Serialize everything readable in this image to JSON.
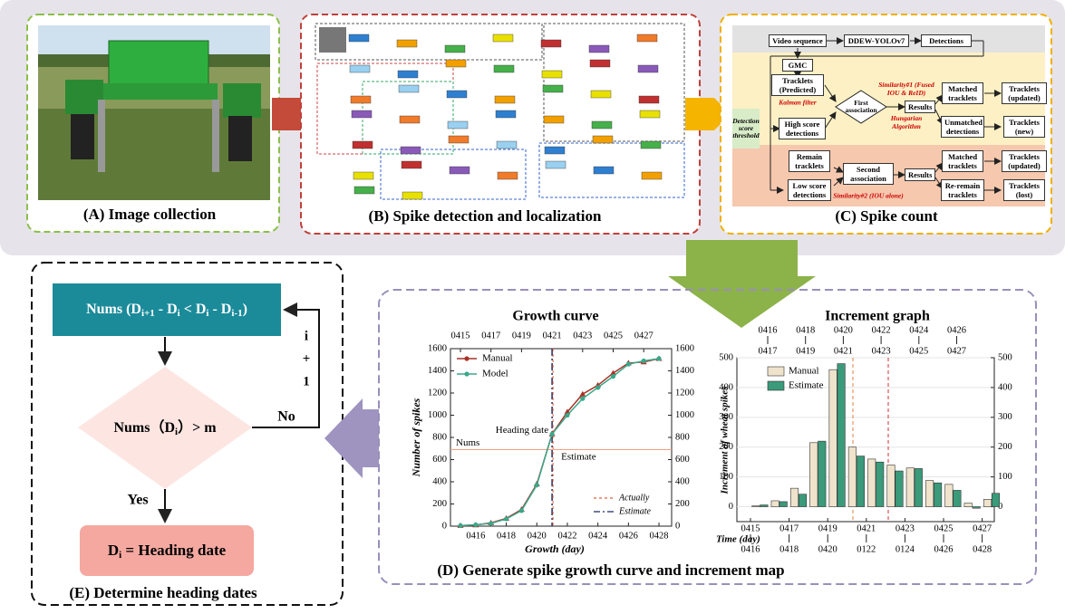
{
  "panel_a": {
    "caption": "(A) Image collection"
  },
  "panel_b": {
    "caption": "(B) Spike detection and localization"
  },
  "panel_c": {
    "caption": "(C)   Spike count",
    "nodes": {
      "video_sequence": "Video sequence",
      "detector": "DDEW-YOLOv7",
      "detections": "Detections",
      "gmc": "GMC",
      "tracklets_predicted": "Tracklets (Predicted)",
      "kalman": "Kalman filter",
      "threshold": "Detection score threshold",
      "high_score": "High score detections",
      "first_association": "First association",
      "similarity_1": "Similarity#1 (Fused IOU & ReID)",
      "hungarian": "Hungarian Algorithm",
      "results_1": "Results",
      "matched_1": "Matched tracklets",
      "updated_1": "Tracklets (updated)",
      "unmatched": "Unmatched detections",
      "new": "Tracklets (new)",
      "remain": "Remain tracklets",
      "second_association": "Second association",
      "low_score": "Low score detections",
      "similarity_2": "Similarity#2 (IOU alone)",
      "results_2": "Results",
      "matched_2": "Matched tracklets",
      "updated_2": "Tracklets (updated)",
      "re_remain": "Re-remain tracklets",
      "lost": "Tracklets (lost)"
    }
  },
  "panel_d": {
    "caption": "(D) Generate spike growth curve and increment map",
    "growth_curve": {
      "type": "line",
      "title": "Growth curve",
      "x_label": "Growth (day)",
      "y_label": "Number of spikes",
      "categories": [
        "0415",
        "0416",
        "0417",
        "0418",
        "0419",
        "0420",
        "0421",
        "0422",
        "0423",
        "0424",
        "0425",
        "0426",
        "0427",
        "0428"
      ],
      "series": [
        {
          "name": "Manual",
          "color": "#a83228",
          "values": [
            5,
            10,
            30,
            70,
            150,
            380,
            830,
            1030,
            1190,
            1270,
            1380,
            1470,
            1480,
            1510
          ]
        },
        {
          "name": "Model",
          "color": "#3aa88a",
          "values": [
            5,
            12,
            25,
            65,
            140,
            370,
            830,
            1000,
            1150,
            1250,
            1350,
            1460,
            1490,
            1510
          ]
        }
      ],
      "ylim": [
        0,
        1600
      ],
      "yticks": [
        0,
        200,
        400,
        600,
        800,
        1000,
        1200,
        1400,
        1600
      ],
      "y2lim": [
        0,
        1600
      ],
      "y2ticks": [
        0,
        200,
        400,
        600,
        800,
        1000,
        1200,
        1400,
        1600
      ],
      "heading_label": "Heading date",
      "estimate_label": "Estimate",
      "nums_label": "Nums",
      "nums_value": 690,
      "reference_legend": [
        {
          "name": "Actually",
          "color": "#e0603c"
        },
        {
          "name": "Estimate",
          "color": "#1c2a66"
        }
      ]
    },
    "increment_graph": {
      "type": "bar",
      "title": "Increment graph",
      "x_label": "Time (day)",
      "y_label": "Increment of wheat spikes",
      "bottom_labels_upper": [
        "0415",
        "0417",
        "0419",
        "0421",
        "0423",
        "0425",
        "0427"
      ],
      "bottom_labels_lower": [
        "0416",
        "0418",
        "0420",
        "0122",
        "0124",
        "0426",
        "0428"
      ],
      "top_labels_upper": [
        "0416",
        "0418",
        "0420",
        "0422",
        "0424",
        "0426"
      ],
      "top_labels_lower": [
        "0417",
        "0419",
        "0421",
        "0423",
        "0425",
        "0427"
      ],
      "series": [
        {
          "name": "Manual",
          "color": "#efe3cc",
          "values": [
            3,
            20,
            62,
            215,
            460,
            200,
            160,
            140,
            130,
            88,
            75,
            12,
            25
          ]
        },
        {
          "name": "Estimate",
          "color": "#3a9a7a",
          "values": [
            6,
            17,
            42,
            220,
            480,
            170,
            150,
            120,
            128,
            80,
            55,
            -5,
            45
          ]
        }
      ],
      "ylim": [
        -50,
        500
      ],
      "yticks": [
        0,
        100,
        200,
        300,
        400,
        500
      ],
      "y2lim": [
        -50,
        500
      ],
      "y2ticks": [
        0,
        100,
        200,
        300,
        400,
        500
      ]
    }
  },
  "panel_e": {
    "caption": "(E)  Determine heading dates",
    "condition_1": [
      "Nums (D",
      "i+1",
      " - D",
      "i",
      " < D",
      "i",
      " - D",
      "i-1",
      ")"
    ],
    "loop_label": [
      "i",
      "+",
      "1"
    ],
    "no": "No",
    "condition_2": [
      "Nums（D",
      "i",
      "）> m"
    ],
    "yes": "Yes",
    "result": [
      "D",
      "i",
      " = Heading date"
    ]
  }
}
